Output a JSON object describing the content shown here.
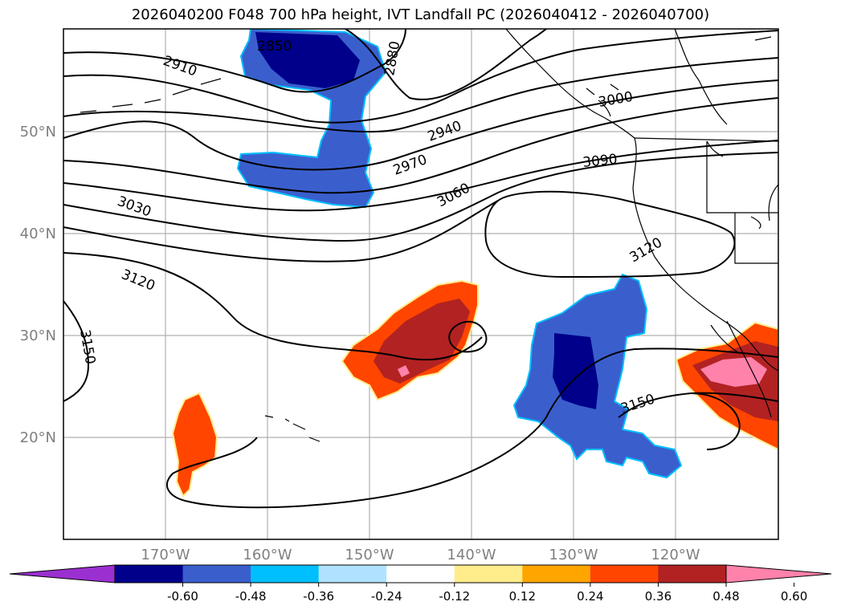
{
  "title": "2026040200 F048 700 hPa height, IVT Landfall PC (2026040412 - 2026040700)",
  "map": {
    "lat_labels": [
      "50°N",
      "40°N",
      "30°N",
      "20°N"
    ],
    "lon_labels": [
      "170°W",
      "160°W",
      "150°W",
      "140°W",
      "130°W",
      "120°W"
    ],
    "contour_labels": [
      "2850",
      "2880",
      "2910",
      "2940",
      "2970",
      "3000",
      "3030",
      "3060",
      "3090",
      "3120",
      "3120",
      "3150",
      "3150"
    ]
  },
  "colorbar": {
    "colors": [
      "#9b30d0",
      "#00008b",
      "#3a5fcd",
      "#00bfff",
      "#b0e2ff",
      "#ffffff",
      "#ffec8b",
      "#ffa500",
      "#ff4500",
      "#b22222",
      "#ff82ab"
    ],
    "ticks": [
      "-0.60",
      "-0.48",
      "-0.36",
      "-0.24",
      "-0.12",
      "0.12",
      "0.24",
      "0.36",
      "0.48",
      "0.60"
    ]
  }
}
